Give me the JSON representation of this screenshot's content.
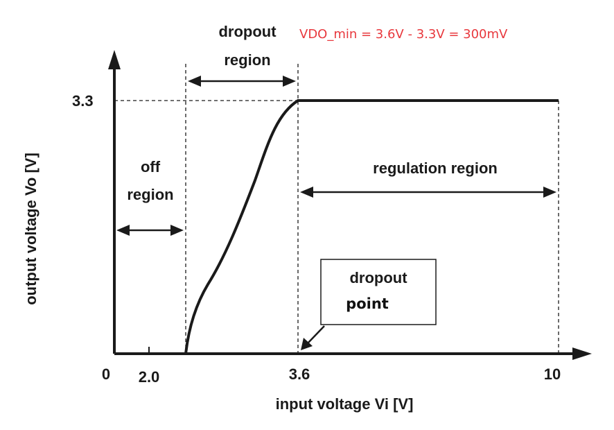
{
  "texts": {
    "ylabel": "output voltage Vo [V]",
    "xlabel": "input voltage Vi [V]",
    "ytick_33": "3.3",
    "xtick_0": "0",
    "xtick_20": "2.0",
    "xtick_36": "3.6",
    "xtick_10": "10",
    "dropout_region_1": "dropout",
    "dropout_region_2": "region",
    "off_region_1": "off",
    "off_region_2": "region",
    "regulation_region": "regulation region",
    "dropout_point_1": "dropout",
    "dropout_point_2": "point",
    "annotation": "VDO_min = 3.6V - 3.3V = 300mV"
  },
  "colors": {
    "annotation": "#e8383d",
    "line": "#1a1a1a"
  }
}
